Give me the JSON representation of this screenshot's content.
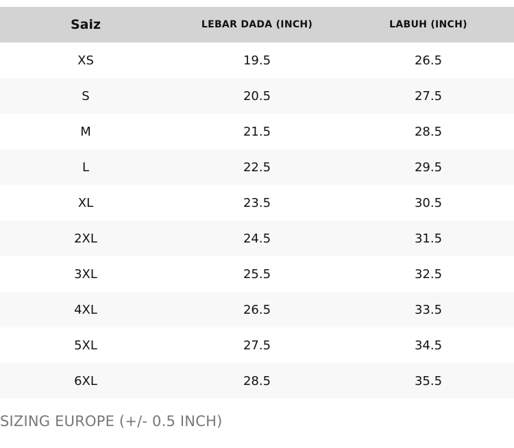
{
  "table": {
    "headers": [
      "Saiz",
      "LEBAR DADA (INCH)",
      "LABUH (INCH)"
    ],
    "rows": [
      [
        "XS",
        "19.5",
        "26.5"
      ],
      [
        "S",
        "20.5",
        "27.5"
      ],
      [
        "M",
        "21.5",
        "28.5"
      ],
      [
        "L",
        "22.5",
        "29.5"
      ],
      [
        "XL",
        "23.5",
        "30.5"
      ],
      [
        "2XL",
        "24.5",
        "31.5"
      ],
      [
        "3XL",
        "25.5",
        "32.5"
      ],
      [
        "4XL",
        "26.5",
        "33.5"
      ],
      [
        "5XL",
        "27.5",
        "34.5"
      ],
      [
        "6XL",
        "28.5",
        "35.5"
      ]
    ]
  },
  "note": "SIZING EUROPE (+/- 0.5 INCH)",
  "colors": {
    "header_bg": "#d3d3d3",
    "stripe_bg": "#f8f8f8",
    "note_text": "#777777"
  }
}
